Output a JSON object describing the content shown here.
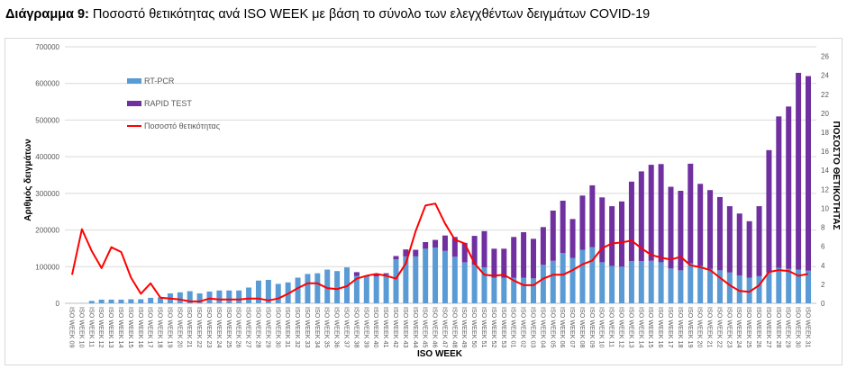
{
  "title_bold": "Διάγραμμα 9:",
  "title_rest": " Ποσοστό θετικότητας ανά ISO WEEK με βάση το σύνολο των ελεγχθέντων δειγμάτων COVID-19",
  "chart_data": {
    "type": "bar",
    "stacked": true,
    "title": "Διάγραμμα 9: Ποσοστό θετικότητας ανά ISO WEEK με βάση το σύνολο των ελεγχθέντων δειγμάτων COVID-19",
    "xlabel": "ISO WEEK",
    "ylabel": "Αριθμός δειγμάτων",
    "y2label": "ΠΟΣΟΣΤΟ ΘΕΤΙΚΟΤΗΤΑΣ",
    "ylim": [
      0,
      700000
    ],
    "y2lim": [
      0,
      27
    ],
    "yticks": [
      "0",
      "100000",
      "200000",
      "300000",
      "400000",
      "500000",
      "600000",
      "700000"
    ],
    "y2ticks": [
      "0",
      "2",
      "4",
      "6",
      "8",
      "10",
      "12",
      "14",
      "16",
      "18",
      "20",
      "22",
      "24",
      "26"
    ],
    "grid": true,
    "legend_position": "top-left",
    "colors": {
      "rt_pcr": "#5b9bd5",
      "rapid": "#7030a0",
      "positivity": "#ff0000"
    },
    "categories": [
      "ISO WEEK 09",
      "ISO WEEK 10",
      "ISO WEEK 11",
      "ISO WEEK 12",
      "ISO WEEK 13",
      "ISO WEEK 14",
      "ISO WEEK 15",
      "ISO WEEK 16",
      "ISO WEEK 17",
      "ISO WEEK 18",
      "ISO WEEK 19",
      "ISO WEEK 20",
      "ISO WEEK 21",
      "ISO WEEK 22",
      "ISO WEEK 23",
      "ISO WEEK 24",
      "ISO WEEK 25",
      "ISO WEEK 26",
      "ISO WEEK 27",
      "ISO WEEK 28",
      "ISO WEEK 29",
      "ISO WEEK 30",
      "ISO WEEK 31",
      "ISO WEEK 32",
      "ISO WEEK 33",
      "ISO WEEK 34",
      "ISO WEEK 35",
      "ISO WEEK 36",
      "ISO WEEK 37",
      "ISO WEEK 38",
      "ISO WEEK 39",
      "ISO WEEK 40",
      "ISO WEEK 41",
      "ISO WEEK 42",
      "ISO WEEK 43",
      "ISO WEEK 44",
      "ISO WEEK 45",
      "ISO WEEK 46",
      "ISO WEEK 47",
      "ISO WEEK 48",
      "ISO WEEK 49",
      "ISO WEEK 50",
      "ISO WEEK 51",
      "ISO WEEK 52",
      "ISO WEEK 53",
      "ISO WEEK 01",
      "ISO WEEK 02",
      "ISO WEEK 03",
      "ISO WEEK 04",
      "ISO WEEK 05",
      "ISO WEEK 06",
      "ISO WEEK 07",
      "ISO WEEK 08",
      "ISO WEEK 09",
      "ISO WEEK 10",
      "ISO WEEK 11",
      "ISO WEEK 12",
      "ISO WEEK 13",
      "ISO WEEK 14",
      "ISO WEEK 15",
      "ISO WEEK 16",
      "ISO WEEK 17",
      "ISO WEEK 18",
      "ISO WEEK 19",
      "ISO WEEK 20",
      "ISO WEEK 21",
      "ISO WEEK 22",
      "ISO WEEK 23",
      "ISO WEEK 24",
      "ISO WEEK 25",
      "ISO WEEK 26",
      "ISO WEEK 27",
      "ISO WEEK 28",
      "ISO WEEK 29",
      "ISO WEEK 30",
      "ISO WEEK 31"
    ],
    "series": [
      {
        "name": "RT-PCR",
        "type": "bar",
        "axis": "left",
        "values": [
          0,
          500,
          6500,
          10000,
          10000,
          10000,
          11000,
          11000,
          15000,
          16000,
          27000,
          30000,
          33000,
          27000,
          32000,
          35000,
          35000,
          35000,
          43000,
          62000,
          64000,
          53000,
          57000,
          70000,
          80000,
          82000,
          92000,
          88000,
          98000,
          75000,
          73000,
          73000,
          78000,
          120000,
          128000,
          128000,
          149000,
          152000,
          143000,
          127000,
          112000,
          105000,
          98000,
          70000,
          70000,
          70000,
          70000,
          68000,
          105000,
          116000,
          137000,
          124000,
          146000,
          153000,
          112000,
          102000,
          100000,
          115000,
          115000,
          116000,
          112000,
          95000,
          90000,
          109000,
          102000,
          94000,
          90000,
          84000,
          76000,
          70000,
          74000,
          84000,
          97000,
          94000,
          92000,
          89000
        ]
      },
      {
        "name": "RAPID TEST",
        "type": "bar",
        "axis": "left",
        "values": [
          0,
          0,
          0,
          0,
          0,
          0,
          0,
          0,
          0,
          0,
          0,
          0,
          0,
          0,
          0,
          0,
          0,
          0,
          0,
          0,
          0,
          0,
          0,
          0,
          0,
          0,
          0,
          0,
          0,
          10000,
          3000,
          6000,
          4000,
          9000,
          19000,
          18000,
          18000,
          21000,
          42000,
          54000,
          53000,
          79000,
          99000,
          79000,
          79000,
          111000,
          124000,
          108000,
          103000,
          137000,
          143000,
          106000,
          148000,
          169000,
          177000,
          163000,
          178000,
          217000,
          245000,
          262000,
          268000,
          223000,
          217000,
          272000,
          224000,
          215000,
          200000,
          181000,
          169000,
          154000,
          191000,
          334000,
          413000,
          443000,
          537000,
          531000
        ]
      },
      {
        "name": "Ποσοστό θετικότητας",
        "type": "line",
        "axis": "right",
        "values": [
          3.0,
          7.8,
          5.5,
          3.7,
          5.9,
          5.4,
          2.7,
          1.0,
          2.1,
          0.6,
          0.5,
          0.4,
          0.2,
          0.2,
          0.5,
          0.4,
          0.4,
          0.4,
          0.5,
          0.5,
          0.3,
          0.5,
          1.0,
          1.6,
          2.1,
          2.1,
          1.6,
          1.5,
          1.8,
          2.6,
          2.9,
          3.1,
          2.9,
          2.6,
          4.2,
          7.6,
          10.3,
          10.5,
          8.4,
          6.7,
          6.3,
          4.2,
          3.0,
          2.9,
          3.0,
          2.4,
          1.9,
          1.9,
          2.6,
          3.0,
          3.0,
          3.5,
          4.1,
          4.5,
          5.8,
          6.3,
          6.4,
          6.6,
          5.8,
          5.1,
          4.8,
          4.6,
          4.9,
          4.0,
          3.8,
          3.5,
          2.7,
          1.9,
          1.3,
          1.2,
          1.9,
          3.3,
          3.5,
          3.4,
          2.9,
          3.1
        ]
      }
    ]
  }
}
